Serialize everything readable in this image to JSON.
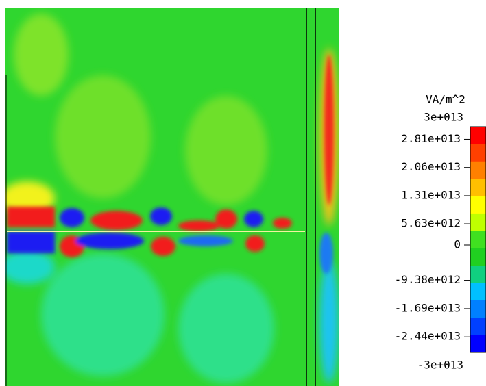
{
  "colorbar": {
    "unit": "VA/m^2",
    "max": {
      "value": 30000000000000.0,
      "label": "3e+013"
    },
    "min": {
      "value": -30000000000000.0,
      "label": "-3e+013"
    },
    "ticks": [
      {
        "value": 28100000000000.0,
        "label": "2.81e+013"
      },
      {
        "value": 20600000000000.0,
        "label": "2.06e+013"
      },
      {
        "value": 13100000000000.0,
        "label": "1.31e+013"
      },
      {
        "value": 5630000000000.0,
        "label": "5.63e+012"
      },
      0,
      {
        "value": -9380000000000.0,
        "label": "-9.38e+012"
      },
      {
        "value": -16900000000000.0,
        "label": "-1.69e+013"
      },
      {
        "value": -24400000000000.0,
        "label": "-2.44e+013"
      }
    ]
  }
}
